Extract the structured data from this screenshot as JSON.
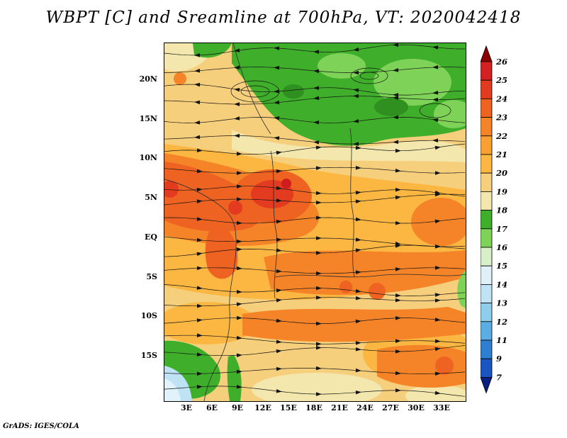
{
  "title": "WBPT [C] and Sreamline at 700hPa, VT: 2020042418",
  "credit": "GrADS: IGES/COLA",
  "map": {
    "y_ticks": [
      "20N",
      "15N",
      "10N",
      "5N",
      "EQ",
      "5S",
      "10S",
      "15S"
    ],
    "x_ticks": [
      "3E",
      "6E",
      "9E",
      "12E",
      "15E",
      "18E",
      "21E",
      "24E",
      "27E",
      "30E",
      "33E"
    ]
  },
  "colorbar": {
    "labels": [
      "26",
      "25",
      "24",
      "23",
      "22",
      "21",
      "20",
      "19",
      "18",
      "17",
      "16",
      "15",
      "14",
      "13",
      "12",
      "11",
      "9",
      "7"
    ],
    "top_arrow_color": "#8b0000",
    "bottom_arrow_color": "#082180",
    "segment_colors_top_to_bottom": [
      "#d42020",
      "#e23b20",
      "#ee6322",
      "#f58428",
      "#f9a033",
      "#fbb742",
      "#f6cf7d",
      "#f3e7ae",
      "#3fae2a",
      "#7ed257",
      "#d8f0c8",
      "#dff0f8",
      "#bfe3f5",
      "#8ecdec",
      "#5aaee2",
      "#2f7fd0",
      "#1a55c2"
    ]
  },
  "chart_data": {
    "type": "heatmap",
    "subtype": "filled contour map with streamline overlay (GrADS)",
    "title": "WBPT [C] and Sreamline at 700hPa, VT: 2020042418",
    "variable": "WBPT",
    "units": "C",
    "pressure_level": "700hPa",
    "valid_time": "2020042418",
    "x_tick_labels": [
      "3E",
      "6E",
      "9E",
      "12E",
      "15E",
      "18E",
      "21E",
      "24E",
      "27E",
      "30E",
      "33E"
    ],
    "y_tick_labels": [
      "20N",
      "15N",
      "10N",
      "5N",
      "EQ",
      "5S",
      "10S",
      "15S"
    ],
    "contour_levels": [
      7,
      9,
      11,
      12,
      13,
      14,
      15,
      16,
      17,
      18,
      19,
      20,
      21,
      22,
      23,
      24,
      25,
      26
    ],
    "palette_top_to_bottom": [
      "#d42020",
      "#e23b20",
      "#ee6322",
      "#f58428",
      "#f9a033",
      "#fbb742",
      "#f6cf7d",
      "#f3e7ae",
      "#3fae2a",
      "#7ed257",
      "#d8f0c8",
      "#dff0f8",
      "#bfe3f5",
      "#8ecdec",
      "#5aaee2",
      "#2f7fd0",
      "#1a55c2"
    ],
    "legend_position": "right",
    "field_summary": "Green (17-18C) band across the north, warm orange/red core (22-26C) near 5N-10N around 3E-15E, broad 19-22C orange/tan over central and southern area, green and pale blue (13-15C) patch at the southwest corner, streamlines with arrows over the whole domain"
  }
}
